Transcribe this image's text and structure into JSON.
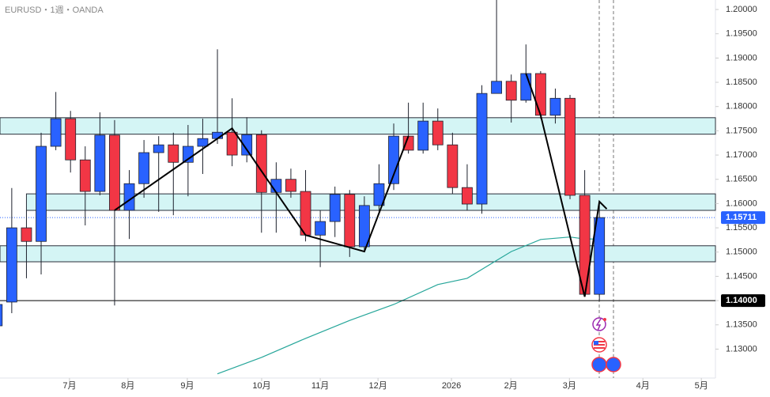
{
  "chart_data": {
    "type": "candlestick",
    "header": "EURUSD・1週・OANDA",
    "up_color": "#2962ff",
    "down_color": "#f23645",
    "ohlc": [
      [
        1.1348,
        1.14,
        1.1335,
        1.1392
      ],
      [
        1.1397,
        1.1632,
        1.1374,
        1.155
      ],
      [
        1.155,
        1.1586,
        1.1446,
        1.1522
      ],
      [
        1.1522,
        1.1746,
        1.1454,
        1.1718
      ],
      [
        1.1718,
        1.183,
        1.171,
        1.1775
      ],
      [
        1.1775,
        1.1791,
        1.1664,
        1.169
      ],
      [
        1.169,
        1.1718,
        1.1555,
        1.1625
      ],
      [
        1.1625,
        1.1788,
        1.1617,
        1.1741
      ],
      [
        1.1741,
        1.1772,
        1.139,
        1.1586
      ],
      [
        1.1586,
        1.1669,
        1.1527,
        1.1641
      ],
      [
        1.1641,
        1.1731,
        1.1612,
        1.1705
      ],
      [
        1.1705,
        1.1739,
        1.1583,
        1.1721
      ],
      [
        1.1721,
        1.1746,
        1.1576,
        1.1685
      ],
      [
        1.1685,
        1.1762,
        1.1615,
        1.1718
      ],
      [
        1.1718,
        1.1775,
        1.1661,
        1.1734
      ],
      [
        1.1734,
        1.1918,
        1.1723,
        1.1747
      ],
      [
        1.1747,
        1.1817,
        1.1677,
        1.17
      ],
      [
        1.17,
        1.1778,
        1.1685,
        1.1742
      ],
      [
        1.1742,
        1.1751,
        1.154,
        1.1623
      ],
      [
        1.1623,
        1.1685,
        1.154,
        1.165
      ],
      [
        1.165,
        1.1672,
        1.1612,
        1.1625
      ],
      [
        1.1625,
        1.1669,
        1.1522,
        1.1535
      ],
      [
        1.1535,
        1.1586,
        1.1469,
        1.1563
      ],
      [
        1.1563,
        1.1635,
        1.1531,
        1.1619
      ],
      [
        1.1619,
        1.1628,
        1.149,
        1.1511
      ],
      [
        1.1511,
        1.1615,
        1.1501,
        1.1596
      ],
      [
        1.1596,
        1.1681,
        1.1583,
        1.1641
      ],
      [
        1.1641,
        1.1765,
        1.1628,
        1.1739
      ],
      [
        1.1739,
        1.1808,
        1.1703,
        1.171
      ],
      [
        1.171,
        1.1808,
        1.1703,
        1.177
      ],
      [
        1.177,
        1.1796,
        1.171,
        1.1721
      ],
      [
        1.1721,
        1.1746,
        1.162,
        1.1633
      ],
      [
        1.1633,
        1.1681,
        1.1586,
        1.1599
      ],
      [
        1.1599,
        1.1844,
        1.1579,
        1.1827
      ],
      [
        1.1827,
        1.202,
        1.1827,
        1.1852
      ],
      [
        1.1852,
        1.1866,
        1.1767,
        1.1813
      ],
      [
        1.1813,
        1.1928,
        1.1808,
        1.1868
      ],
      [
        1.1868,
        1.1873,
        1.1775,
        1.1782
      ],
      [
        1.1782,
        1.1837,
        1.1765,
        1.1817
      ],
      [
        1.1817,
        1.1824,
        1.1609,
        1.1617
      ],
      [
        1.1617,
        1.1669,
        1.1408,
        1.1413
      ],
      [
        1.1413,
        1.1604,
        1.14,
        1.15711
      ]
    ],
    "ma": {
      "color": "#26a69a",
      "x": [
        15,
        18,
        21,
        24,
        27,
        30,
        32,
        35,
        37,
        39,
        40,
        41
      ],
      "values": [
        1.1249,
        1.1283,
        1.1322,
        1.1359,
        1.1392,
        1.1433,
        1.1446,
        1.1501,
        1.1526,
        1.1531,
        1.1527,
        1.1527
      ]
    },
    "zigzag": {
      "color": "#000000",
      "x": [
        8,
        16,
        21,
        25,
        28,
        33,
        36,
        37,
        40,
        41,
        41.5
      ],
      "values": [
        1.1586,
        1.1755,
        1.1535,
        1.1501,
        1.1739,
        null,
        1.1868,
        1.1782,
        1.1408,
        1.1604,
        1.1589
      ]
    },
    "zones": [
      {
        "low": 1.1743,
        "high": 1.1777,
        "x0": 0.2
      },
      {
        "low": 1.1586,
        "high": 1.162,
        "x0": 2
      },
      {
        "low": 1.148,
        "high": 1.1513,
        "x0": 0.2
      }
    ],
    "price_labels": [
      {
        "value": 1.15711,
        "label": "1.15711",
        "color": "#2962ff"
      },
      {
        "value": 1.14,
        "label": "1.14000",
        "color": "#000000"
      }
    ],
    "xlim": [
      0.2,
      48.9
    ],
    "ylim": [
      1.12404,
      1.20196
    ],
    "xticks": [
      {
        "value": 4.93,
        "label": "7月"
      },
      {
        "value": 8.91,
        "label": "8月"
      },
      {
        "value": 12.95,
        "label": "9月"
      },
      {
        "value": 18.01,
        "label": "10月"
      },
      {
        "value": 22.0,
        "label": "11月"
      },
      {
        "value": 25.93,
        "label": "12月"
      },
      {
        "value": 30.93,
        "label": "2026"
      },
      {
        "value": 34.97,
        "label": "2月"
      },
      {
        "value": 38.96,
        "label": "3月"
      },
      {
        "value": 43.96,
        "label": "4月"
      },
      {
        "value": 47.94,
        "label": "5月"
      }
    ],
    "yticks": [
      {
        "value": 1.13,
        "label": "1.13000"
      },
      {
        "value": 1.135,
        "label": "1.13500"
      },
      {
        "value": 1.14,
        "label": "1.14000"
      },
      {
        "value": 1.145,
        "label": "1.14500"
      },
      {
        "value": 1.15,
        "label": "1.15000"
      },
      {
        "value": 1.155,
        "label": "1.15500"
      },
      {
        "value": 1.16,
        "label": "1.16000"
      },
      {
        "value": 1.165,
        "label": "1.16500"
      },
      {
        "value": 1.17,
        "label": "1.17000"
      },
      {
        "value": 1.175,
        "label": "1.17500"
      },
      {
        "value": 1.18,
        "label": "1.18000"
      },
      {
        "value": 1.185,
        "label": "1.18500"
      },
      {
        "value": 1.19,
        "label": "1.19000"
      },
      {
        "value": 1.195,
        "label": "1.19500"
      },
      {
        "value": 1.2,
        "label": "1.20000"
      }
    ]
  }
}
